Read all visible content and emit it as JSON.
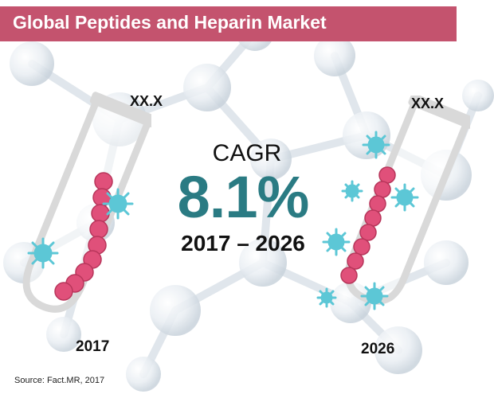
{
  "title": "Global Peptides and Heparin Market",
  "cagr": {
    "label": "CAGR",
    "value": "8.1%",
    "period": "2017 – 2026"
  },
  "left_tube": {
    "value_label": "XX.X",
    "year": "2017"
  },
  "right_tube": {
    "value_label": "XX.X",
    "year": "2026"
  },
  "source": "Source: Fact.MR, 2017",
  "colors": {
    "title_bar": "#c4536e",
    "cagr_value": "#2a7b83",
    "peptide_bead": "#e0507a",
    "heparin_virus": "#5cc7d6",
    "tube_outline": "#d9d9d9"
  },
  "icons": [
    "test-tube-icon",
    "peptide-chain-icon",
    "virus-icon",
    "molecule-background"
  ]
}
